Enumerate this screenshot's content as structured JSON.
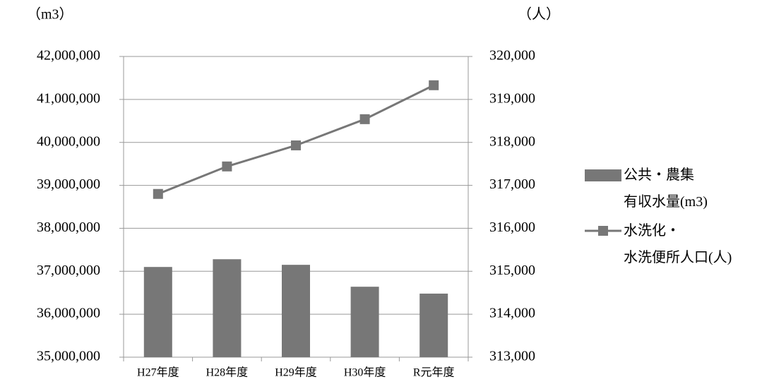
{
  "chart_data": {
    "type": "bar-line",
    "y_unit_label": "（m3）",
    "y2_unit_label": "（人）",
    "categories": [
      "H27年度",
      "H28年度",
      "H29年度",
      "H30年度",
      "R元年度"
    ],
    "series": [
      {
        "name": "公共・農集\n有収水量(m3)",
        "type": "bar",
        "color": "#777777",
        "axis": "y",
        "values": [
          37100000,
          37280000,
          37150000,
          36640000,
          36480000
        ]
      },
      {
        "name": "水洗化・\n水洗便所人口(人)",
        "type": "line",
        "color": "#777777",
        "axis": "y2",
        "values": [
          316800,
          317440,
          317930,
          318540,
          319330
        ]
      }
    ],
    "ylim": [
      35000000,
      42000000
    ],
    "yticks": [
      {
        "value": 35000000,
        "label": "35,000,000"
      },
      {
        "value": 36000000,
        "label": "36,000,000"
      },
      {
        "value": 37000000,
        "label": "37,000,000"
      },
      {
        "value": 38000000,
        "label": "38,000,000"
      },
      {
        "value": 39000000,
        "label": "39,000,000"
      },
      {
        "value": 40000000,
        "label": "40,000,000"
      },
      {
        "value": 41000000,
        "label": "41,000,000"
      },
      {
        "value": 42000000,
        "label": "42,000,000"
      }
    ],
    "y2lim": [
      313000,
      320000
    ],
    "y2ticks": [
      {
        "value": 313000,
        "label": "313,000"
      },
      {
        "value": 314000,
        "label": "314,000"
      },
      {
        "value": 315000,
        "label": "315,000"
      },
      {
        "value": 316000,
        "label": "316,000"
      },
      {
        "value": 317000,
        "label": "317,000"
      },
      {
        "value": 318000,
        "label": "318,000"
      },
      {
        "value": 319000,
        "label": "319,000"
      },
      {
        "value": 320000,
        "label": "320,000"
      }
    ],
    "grid": true,
    "legend": "right"
  }
}
